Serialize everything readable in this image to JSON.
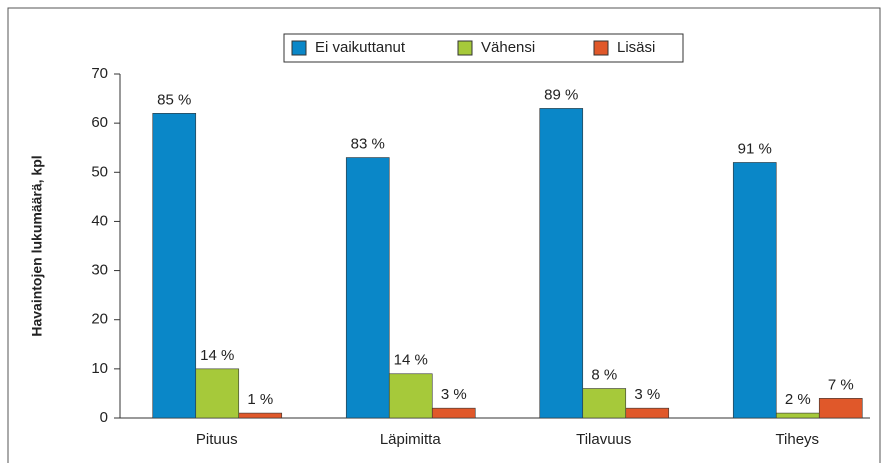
{
  "chart_data": {
    "type": "bar",
    "y_axis_label": "Havaintojen lukumäärä, kpl",
    "categories": [
      "Pituus",
      "Läpimitta",
      "Tilavuus",
      "Tiheys"
    ],
    "series": [
      {
        "name": "Ei vaikuttanut",
        "color": "#0a87c8",
        "values": [
          62,
          53,
          63,
          52
        ],
        "data_labels": [
          "85 %",
          "83 %",
          "89 %",
          "91 %"
        ]
      },
      {
        "name": "Vähensi",
        "color": "#a6c93a",
        "values": [
          10,
          9,
          6,
          1
        ],
        "data_labels": [
          "14 %",
          "14 %",
          "8 %",
          "2 %"
        ]
      },
      {
        "name": "Lisäsi",
        "color": "#e0582a",
        "values": [
          1,
          2,
          2,
          4
        ],
        "data_labels": [
          "1 %",
          "3 %",
          "3 %",
          "7 %"
        ]
      }
    ],
    "ylim": [
      0,
      70
    ],
    "yticks": [
      0,
      10,
      20,
      30,
      40,
      50,
      60,
      70
    ],
    "legend": "top"
  }
}
